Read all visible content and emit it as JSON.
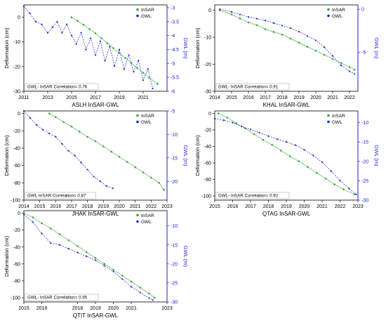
{
  "colors": {
    "insar": "#3aa63a",
    "gwl": "#1f1fd6",
    "axis": "#000000"
  },
  "chart_data": [
    {
      "type": "line",
      "subtitle": "ASLH InSAR-GWL",
      "xlabel": "",
      "ylabel": "Deformation (cm)",
      "y2label": "GWL (m)",
      "xlim": [
        2011,
        2023
      ],
      "xticks": [
        2011,
        2013,
        2015,
        2017,
        2019,
        2021
      ],
      "ylim": [
        -30,
        5
      ],
      "yticks": [
        0,
        -10,
        -20,
        -30
      ],
      "y2lim": [
        -6.0,
        -2.9
      ],
      "y2ticks": [
        -3.0,
        -3.5,
        -4.0,
        -4.5,
        -5.0,
        -5.5,
        -6.0
      ],
      "annotation": "GWL- InSAR Correlation= 0.76",
      "legend": [
        "InSAR",
        "GWL"
      ],
      "legend_position": "top-right",
      "series": [
        {
          "name": "InSAR",
          "axis": "left",
          "x": [
            2015.0,
            2015.5,
            2016.0,
            2016.5,
            2017.0,
            2017.5,
            2018.0,
            2018.5,
            2019.0,
            2019.5,
            2020.0,
            2020.5,
            2021.0,
            2021.5,
            2022.2
          ],
          "y": [
            0,
            -1.5,
            -3,
            -4.8,
            -6.5,
            -8.5,
            -10.5,
            -12.5,
            -14.5,
            -16.5,
            -18.5,
            -20.5,
            -22.5,
            -24.5,
            -27
          ]
        },
        {
          "name": "GWL",
          "axis": "right",
          "x": [
            2011.0,
            2011.5,
            2012.0,
            2012.5,
            2013.0,
            2013.4,
            2013.8,
            2014.2,
            2014.6,
            2015.0,
            2015.4,
            2015.8,
            2016.2,
            2016.6,
            2017.0,
            2017.4,
            2017.8,
            2018.2,
            2018.6,
            2019.0,
            2019.4,
            2019.8,
            2020.2,
            2020.6,
            2021.0,
            2021.4,
            2021.8
          ],
          "y": [
            -2.95,
            -3.2,
            -3.5,
            -3.6,
            -3.9,
            -3.7,
            -3.5,
            -3.9,
            -3.6,
            -4.0,
            -4.3,
            -3.9,
            -4.5,
            -4.1,
            -4.7,
            -4.2,
            -4.9,
            -4.4,
            -5.1,
            -4.5,
            -5.2,
            -4.7,
            -5.3,
            -4.9,
            -5.6,
            -5.2,
            -5.9
          ]
        }
      ]
    },
    {
      "type": "line",
      "subtitle": "KHAL InSAR-GWL",
      "xlabel": "",
      "ylabel": "Deformation (cm)",
      "y2label": "GWL (m)",
      "xlim": [
        2014,
        2022.5
      ],
      "xticks": [
        2014,
        2015,
        2016,
        2017,
        2018,
        2019,
        2020,
        2021,
        2022
      ],
      "ylim": [
        -30,
        2
      ],
      "yticks": [
        0,
        -10,
        -20,
        -30
      ],
      "y2lim": [
        -9.5,
        0.5
      ],
      "y2ticks": [
        0,
        -5
      ],
      "annotation": "GWL- InSAR Correlation= 0.91",
      "legend": [
        "InSAR",
        "GWL"
      ],
      "legend_position": "top-right",
      "series": [
        {
          "name": "InSAR",
          "axis": "left",
          "x": [
            2014.3,
            2015.0,
            2015.5,
            2016.0,
            2016.5,
            2017.0,
            2017.5,
            2018.0,
            2018.5,
            2019.0,
            2019.5,
            2020.0,
            2020.5,
            2021.0,
            2021.5,
            2022.0,
            2022.3
          ],
          "y": [
            0,
            -1.5,
            -3,
            -4.5,
            -5.5,
            -7,
            -8,
            -9,
            -10.5,
            -12,
            -13.5,
            -15,
            -16.5,
            -18,
            -19.5,
            -21,
            -22
          ]
        },
        {
          "name": "GWL",
          "axis": "right",
          "x": [
            2014.3,
            2015.0,
            2015.5,
            2016.0,
            2016.5,
            2017.0,
            2017.5,
            2018.0,
            2018.5,
            2019.0,
            2019.5,
            2020.0,
            2020.5,
            2021.0,
            2021.5,
            2022.0,
            2022.3
          ],
          "y": [
            0,
            -0.3,
            -0.6,
            -0.9,
            -1.1,
            -1.3,
            -1.6,
            -1.9,
            -2.2,
            -2.6,
            -3.1,
            -3.6,
            -4.4,
            -5.4,
            -6.5,
            -7.2,
            -7.5
          ]
        }
      ]
    },
    {
      "type": "line",
      "subtitle": "JHAK InSAR-GWL",
      "xlabel": "",
      "ylabel": "Deformation (cm)",
      "y2label": "GWL (m)",
      "xlim": [
        2014,
        2023
      ],
      "xticks": [
        2014,
        2015,
        2016,
        2017,
        2018,
        2019,
        2020,
        2021,
        2022,
        2023
      ],
      "ylim": [
        -100,
        3
      ],
      "yticks": [
        0,
        -20,
        -40,
        -60,
        -80,
        -100
      ],
      "y2lim": [
        -24,
        -5
      ],
      "y2ticks": [
        -5,
        -10,
        -15,
        -20
      ],
      "annotation": "GWL-InSAR Correlation= 0.87",
      "legend": [
        "InSAR",
        "GWL"
      ],
      "legend_position": "top-right",
      "series": [
        {
          "name": "InSAR",
          "axis": "left",
          "x": [
            2015.6,
            2016.0,
            2016.5,
            2017.0,
            2017.5,
            2018.0,
            2018.5,
            2019.0,
            2019.5,
            2020.0,
            2020.5,
            2021.0,
            2021.5,
            2022.0,
            2022.5,
            2022.8
          ],
          "y": [
            0,
            -4,
            -10,
            -15,
            -21,
            -27,
            -32,
            -38,
            -44,
            -50,
            -56,
            -62,
            -68,
            -74,
            -80,
            -88
          ]
        },
        {
          "name": "GWL",
          "axis": "right",
          "x": [
            2014.0,
            2014.4,
            2014.8,
            2015.2,
            2015.6,
            2016.0,
            2016.4,
            2016.8,
            2017.2,
            2017.6,
            2018.0,
            2018.4,
            2018.8,
            2019.2,
            2019.6
          ],
          "y": [
            -5,
            -6.5,
            -8,
            -9,
            -9.8,
            -10.5,
            -12,
            -13.5,
            -14.5,
            -16,
            -17.5,
            -19,
            -20,
            -21,
            -21.5
          ]
        }
      ]
    },
    {
      "type": "line",
      "subtitle": "QTAG InSAR-GWL",
      "xlabel": "",
      "ylabel": "Deformation (cm)",
      "y2label": "GWL (m)",
      "xlim": [
        2015,
        2023
      ],
      "xticks": [
        2015,
        2016,
        2017,
        2018,
        2019,
        2020,
        2021,
        2022,
        2023
      ],
      "ylim": [
        -105,
        3
      ],
      "yticks": [
        0,
        -20,
        -40,
        -60,
        -80,
        -100
      ],
      "y2lim": [
        -30,
        -7
      ],
      "y2ticks": [
        -10,
        -15,
        -20,
        -25,
        -30
      ],
      "annotation": "GWL- InSAR Correlation= 0.92",
      "legend": [
        "InSAR",
        "GWL"
      ],
      "legend_position": "top-right",
      "series": [
        {
          "name": "InSAR",
          "axis": "left",
          "x": [
            2015.2,
            2015.7,
            2016.2,
            2016.7,
            2017.2,
            2017.7,
            2018.2,
            2018.7,
            2019.2,
            2019.7,
            2020.2,
            2020.7,
            2021.2,
            2021.7,
            2022.2,
            2022.8
          ],
          "y": [
            0,
            -5,
            -12,
            -18,
            -25,
            -32,
            -38,
            -45,
            -52,
            -58,
            -65,
            -72,
            -79,
            -86,
            -92,
            -98
          ]
        },
        {
          "name": "GWL",
          "axis": "right",
          "x": [
            2015.0,
            2015.5,
            2016.0,
            2016.5,
            2017.0,
            2017.5,
            2018.0,
            2018.5,
            2019.0,
            2019.5,
            2020.0,
            2020.5,
            2021.0,
            2021.5,
            2022.0,
            2022.5,
            2022.9
          ],
          "y": [
            -9,
            -9.4,
            -10,
            -11,
            -11.8,
            -12.6,
            -13.5,
            -14.3,
            -15,
            -15.8,
            -17,
            -18.5,
            -20.2,
            -22.5,
            -25,
            -27,
            -28.5
          ]
        }
      ]
    },
    {
      "type": "line",
      "subtitle": "QTIT InSAR-GWL",
      "xlabel": "",
      "ylabel": "Deformation (cm)",
      "y2label": "GWL (m)",
      "xlim": [
        2015,
        2023
      ],
      "xticks": [
        2015,
        2016,
        2018,
        2019,
        2020,
        2021,
        2023
      ],
      "ylim": [
        -105,
        3
      ],
      "yticks": [
        0,
        -20,
        -40,
        -60,
        -80,
        -100
      ],
      "y2lim": [
        -30,
        -6
      ],
      "y2ticks": [
        -10,
        -15,
        -20,
        -25,
        -30
      ],
      "annotation": "GWL- InSAR Correlation= 0.95",
      "legend": [
        "InSAR",
        "GWL"
      ],
      "legend_position": "top-right",
      "series": [
        {
          "name": "InSAR",
          "axis": "left",
          "x": [
            2015.0,
            2015.5,
            2016.0,
            2016.5,
            2017.0,
            2017.5,
            2018.0,
            2018.5,
            2019.0,
            2019.5,
            2020.0,
            2020.5,
            2021.0,
            2021.5,
            2022.0,
            2022.3
          ],
          "y": [
            0,
            -5,
            -12,
            -18,
            -25,
            -32,
            -39,
            -46,
            -53,
            -60,
            -67,
            -74,
            -81,
            -88,
            -95,
            -100
          ]
        },
        {
          "name": "GWL",
          "axis": "right",
          "x": [
            2015.0,
            2015.5,
            2016.0,
            2016.5,
            2017.0,
            2017.5,
            2018.0,
            2018.5,
            2019.0,
            2019.5,
            2020.0,
            2020.5,
            2021.0,
            2021.5,
            2022.0,
            2022.2
          ],
          "y": [
            -7,
            -9,
            -12,
            -14.5,
            -15,
            -16,
            -17,
            -18,
            -19,
            -20.5,
            -22,
            -24,
            -26,
            -27.5,
            -29,
            -29.5
          ]
        }
      ]
    }
  ]
}
